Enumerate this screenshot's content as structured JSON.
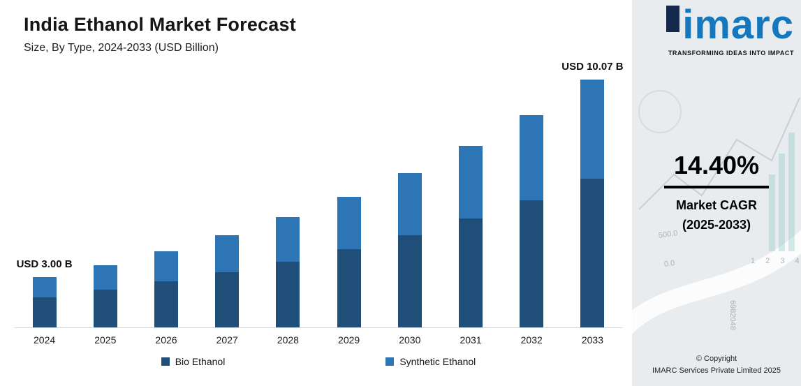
{
  "header": {
    "title": "India Ethanol Market Forecast",
    "subtitle": "Size, By Type, 2024-2033 (USD Billion)"
  },
  "chart_data": {
    "type": "bar",
    "stacked": true,
    "title": "India Ethanol Market Forecast",
    "subtitle": "Size, By Type, 2024-2033 (USD Billion)",
    "xlabel": "",
    "ylabel": "USD Billion",
    "grid": false,
    "legend_position": "bottom",
    "categories": [
      "2024",
      "2025",
      "2026",
      "2027",
      "2028",
      "2029",
      "2030",
      "2031",
      "2032",
      "2033"
    ],
    "series": [
      {
        "name": "Bio Ethanol",
        "color": "#1f4e79",
        "values": [
          1.8,
          2.06,
          2.36,
          2.69,
          3.08,
          3.53,
          4.03,
          4.61,
          5.28,
          6.04
        ]
      },
      {
        "name": "Synthetic Ethanol",
        "color": "#2e75b6",
        "values": [
          1.2,
          1.37,
          1.57,
          1.8,
          2.06,
          2.35,
          2.69,
          3.08,
          3.52,
          4.03
        ]
      }
    ],
    "totals": [
      3.0,
      3.43,
      3.93,
      4.49,
      5.14,
      5.88,
      6.72,
      7.69,
      8.8,
      10.07
    ],
    "annotations": [
      {
        "category": "2024",
        "text": "USD 3.00 B"
      },
      {
        "category": "2033",
        "text": "USD 10.07 B"
      }
    ]
  },
  "sidebar": {
    "logo": {
      "wordmark": "imarc",
      "tagline": "TRANSFORMING IDEAS INTO IMPACT"
    },
    "cagr": {
      "value": "14.40%",
      "label1": "Market CAGR",
      "label2": "(2025-2033)"
    },
    "copyright": {
      "line1": "© Copyright",
      "line2": "IMARC Services Private Limited 2025"
    },
    "decor_numbers": [
      "500.0",
      "0.0",
      "1 2 3 4",
      "6982048"
    ]
  },
  "colors": {
    "bio": "#1f4e79",
    "synthetic": "#2e75b6",
    "logo_blue": "#1577bd",
    "logo_navy": "#14284b",
    "panel_bg": "#e9ecef"
  }
}
